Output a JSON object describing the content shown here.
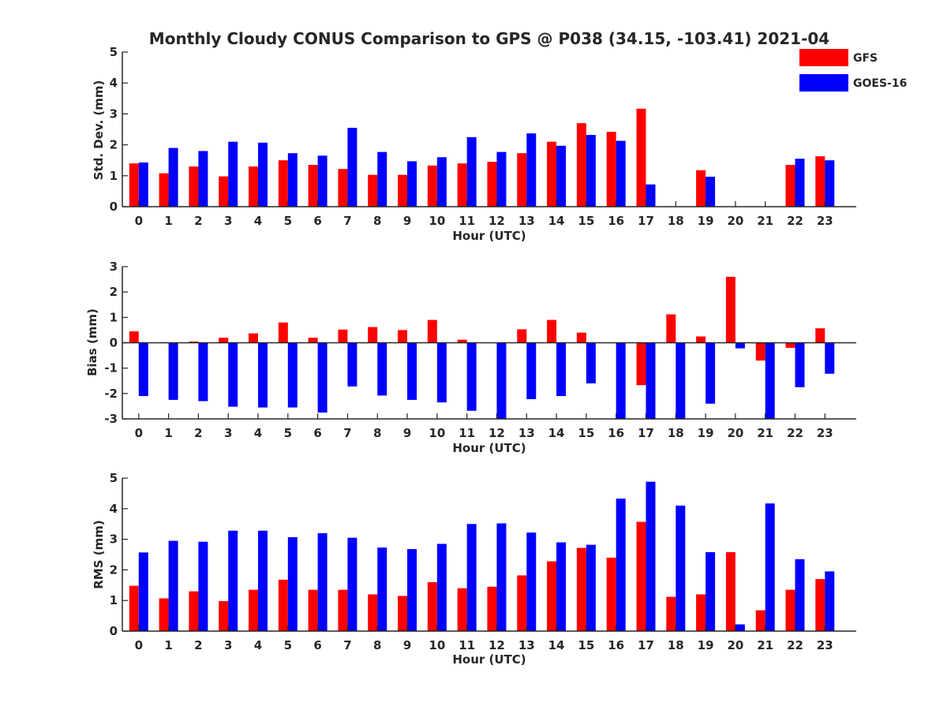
{
  "colors": {
    "gfs": "#ff0000",
    "goes": "#0000ff",
    "axis": "#262626"
  },
  "chart_data": {
    "title": "Monthly Cloudy CONUS Comparison to GPS @ P038 (34.15, -103.41) 2021-04",
    "legend": {
      "placement": "top-right",
      "entries": [
        "GFS",
        "GOES-16"
      ]
    },
    "panels": [
      {
        "type": "bar",
        "ylabel": "Std. Dev. (mm)",
        "xlabel": "Hour (UTC)",
        "ylim": [
          0,
          5
        ],
        "yticks": [
          0,
          1,
          2,
          3,
          4,
          5
        ],
        "categories": [
          "0",
          "1",
          "2",
          "3",
          "4",
          "5",
          "6",
          "7",
          "8",
          "9",
          "10",
          "11",
          "12",
          "13",
          "14",
          "15",
          "16",
          "17",
          "18",
          "19",
          "20",
          "21",
          "22",
          "23"
        ],
        "series": [
          {
            "name": "GFS",
            "values": [
              1.4,
              1.08,
              1.3,
              0.98,
              1.3,
              1.5,
              1.35,
              1.22,
              1.03,
              1.03,
              1.33,
              1.4,
              1.45,
              1.73,
              2.1,
              2.7,
              2.42,
              3.17,
              null,
              1.18,
              null,
              null,
              1.35,
              1.63
            ]
          },
          {
            "name": "GOES-16",
            "values": [
              1.43,
              1.9,
              1.8,
              2.1,
              2.07,
              1.73,
              1.65,
              2.55,
              1.77,
              1.47,
              1.6,
              2.25,
              1.77,
              2.37,
              1.97,
              2.32,
              2.13,
              0.72,
              null,
              0.97,
              null,
              null,
              1.55,
              1.5
            ]
          }
        ]
      },
      {
        "type": "bar",
        "ylabel": "Bias (mm)",
        "xlabel": "Hour (UTC)",
        "ylim": [
          -3,
          3
        ],
        "yticks": [
          -3,
          -2,
          -1,
          0,
          1,
          2,
          3
        ],
        "categories": [
          "0",
          "1",
          "2",
          "3",
          "4",
          "5",
          "6",
          "7",
          "8",
          "9",
          "10",
          "11",
          "12",
          "13",
          "14",
          "15",
          "16",
          "17",
          "18",
          "19",
          "20",
          "21",
          "22",
          "23"
        ],
        "series": [
          {
            "name": "GFS",
            "values": [
              0.45,
              0.02,
              0.05,
              0.2,
              0.37,
              0.8,
              0.2,
              0.52,
              0.62,
              0.5,
              0.9,
              0.12,
              0.0,
              0.53,
              0.9,
              0.4,
              0.0,
              -1.67,
              1.12,
              0.25,
              2.6,
              -0.7,
              -0.2,
              0.57
            ]
          },
          {
            "name": "GOES-16",
            "values": [
              -2.1,
              -2.25,
              -2.3,
              -2.52,
              -2.55,
              -2.55,
              -2.75,
              -1.72,
              -2.08,
              -2.25,
              -2.35,
              -2.68,
              -3.0,
              -2.22,
              -2.1,
              -1.6,
              -3.0,
              -3.0,
              -3.0,
              -2.4,
              -0.22,
              -3.0,
              -1.75,
              -1.22
            ]
          }
        ]
      },
      {
        "type": "bar",
        "ylabel": "RMS (mm)",
        "xlabel": "Hour (UTC)",
        "ylim": [
          0,
          5
        ],
        "yticks": [
          0,
          1,
          2,
          3,
          4,
          5
        ],
        "categories": [
          "0",
          "1",
          "2",
          "3",
          "4",
          "5",
          "6",
          "7",
          "8",
          "9",
          "10",
          "11",
          "12",
          "13",
          "14",
          "15",
          "16",
          "17",
          "18",
          "19",
          "20",
          "21",
          "22",
          "23"
        ],
        "series": [
          {
            "name": "GFS",
            "values": [
              1.48,
              1.07,
              1.3,
              0.98,
              1.35,
              1.68,
              1.35,
              1.35,
              1.2,
              1.15,
              1.6,
              1.4,
              1.45,
              1.82,
              2.28,
              2.72,
              2.4,
              3.57,
              1.12,
              1.2,
              2.58,
              0.68,
              1.35,
              1.7
            ]
          },
          {
            "name": "GOES-16",
            "values": [
              2.57,
              2.95,
              2.92,
              3.28,
              3.28,
              3.07,
              3.2,
              3.05,
              2.73,
              2.68,
              2.85,
              3.5,
              3.52,
              3.22,
              2.9,
              2.82,
              4.33,
              4.88,
              4.1,
              2.58,
              0.22,
              4.17,
              2.35,
              1.95
            ]
          }
        ]
      }
    ]
  }
}
